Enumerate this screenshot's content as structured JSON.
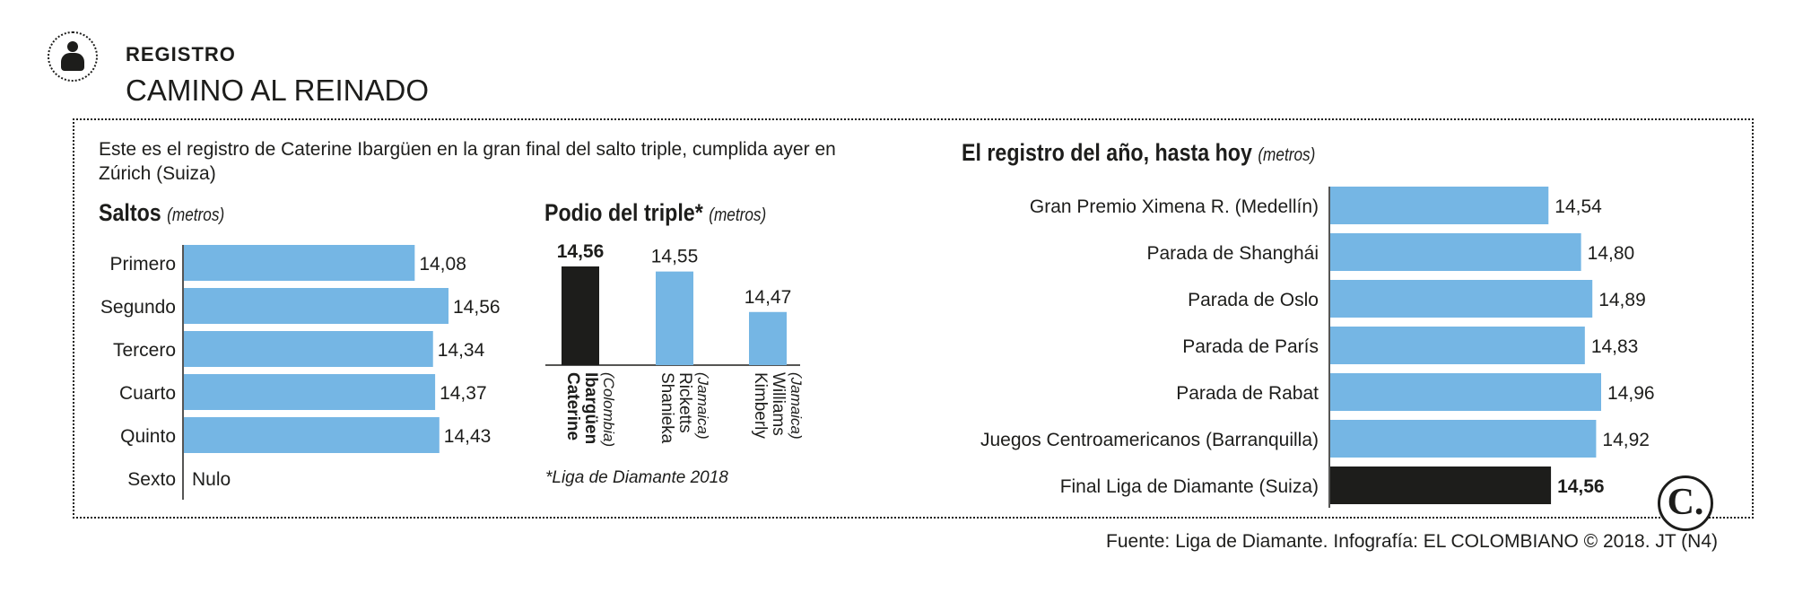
{
  "header": {
    "section": "REGISTRO",
    "title": "CAMINO AL REINADO",
    "icon": "person-icon"
  },
  "intro": "Este es el registro de Caterine Ibargüen en la gran final del salto triple, cumplida ayer en Zúrich (Suiza)",
  "colors": {
    "blue": "#75b6e4",
    "black": "#1d1d1b"
  },
  "footer": "Fuente: Liga de Diamante. Infografía: EL COLOMBIANO © 2018. JT (N4)",
  "logo": "C.",
  "chart_data": [
    {
      "type": "bar",
      "orientation": "horizontal",
      "title": "Saltos",
      "unit": "(metros)",
      "categories": [
        "Primero",
        "Segundo",
        "Tercero",
        "Cuarto",
        "Quinto",
        "Sexto"
      ],
      "values": [
        14.08,
        14.56,
        14.34,
        14.37,
        14.43,
        null
      ],
      "labels": [
        "14,08",
        "14,56",
        "14,34",
        "14,37",
        "14,43",
        "Nulo"
      ]
    },
    {
      "type": "bar",
      "orientation": "vertical",
      "title": "Podio del triple*",
      "unit": "(metros)",
      "categories": [
        {
          "name": "Caterine Ibargüen",
          "country": "(Colombia)"
        },
        {
          "name": "Shanieka Ricketts",
          "country": "(Jamaica)"
        },
        {
          "name": "Kimberly Williams",
          "country": "(Jamaica)"
        }
      ],
      "values": [
        14.56,
        14.55,
        14.47
      ],
      "labels": [
        "14,56",
        "14,55",
        "14,47"
      ],
      "highlight_index": 0,
      "note": "*Liga de Diamante 2018"
    },
    {
      "type": "bar",
      "orientation": "horizontal",
      "title": "El registro del año, hasta hoy",
      "unit": "(metros)",
      "categories": [
        "Gran Premio Ximena R. (Medellín)",
        "Parada de Shanghái",
        "Parada de Oslo",
        "Parada de París",
        "Parada de Rabat",
        "Juegos Centroamericanos (Barranquilla)",
        "Final Liga de Diamante (Suiza)"
      ],
      "values": [
        14.54,
        14.8,
        14.89,
        14.83,
        14.96,
        14.92,
        14.56
      ],
      "labels": [
        "14,54",
        "14,80",
        "14,89",
        "14,83",
        "14,96",
        "14,92",
        "14,56"
      ],
      "highlight_index": 6
    }
  ]
}
